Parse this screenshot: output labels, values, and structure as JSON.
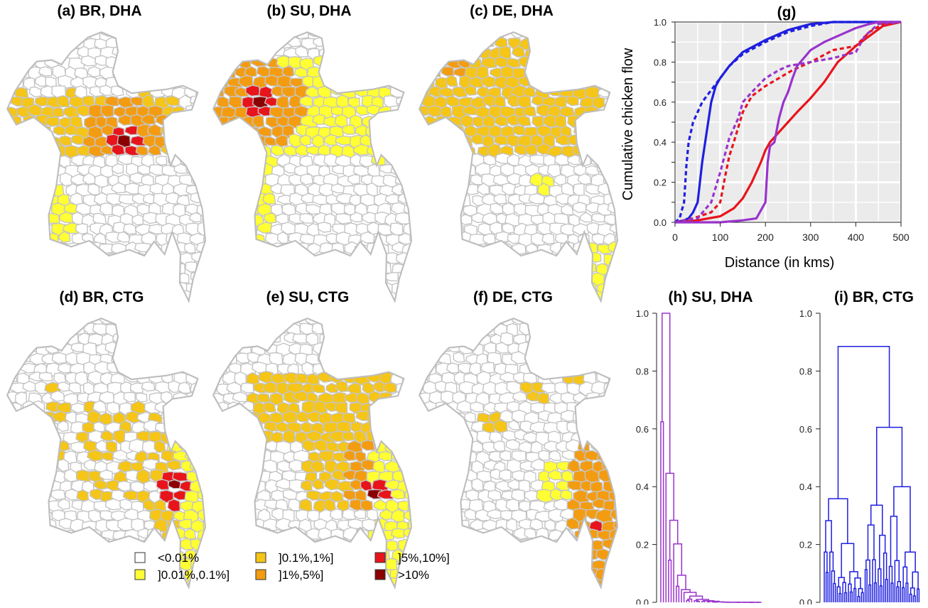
{
  "map_panels": [
    {
      "title": "(a) BR, DHA",
      "route": "DHA"
    },
    {
      "title": "(b) SU, DHA",
      "route": "DHA"
    },
    {
      "title": "(c) DE, DHA",
      "route": "DHA"
    },
    {
      "title": "(d) BR, CTG",
      "route": "CTG"
    },
    {
      "title": "(e) SU, CTG",
      "route": "CTG"
    },
    {
      "title": "(f) DE, CTG",
      "route": "CTG"
    }
  ],
  "legend": [
    {
      "label": "<0.01%",
      "color": "#ffffff"
    },
    {
      "label": "]0.01%,0.1%]",
      "color": "#ffff33"
    },
    {
      "label": "]0.1%,1%]",
      "color": "#f5c518"
    },
    {
      "label": "]1%,5%]",
      "color": "#f39c12"
    },
    {
      "label": "]5%,10%]",
      "color": "#e8141b"
    },
    {
      "label": ">10%",
      "color": "#8b0000"
    }
  ],
  "chart_data": [
    {
      "type": "line",
      "title": "(g)",
      "xlabel": "Distance (in kms)",
      "ylabel": "Cumulative chicken flow",
      "xlim": [
        0,
        500
      ],
      "ylim": [
        0,
        1
      ],
      "xticks": [
        "0",
        "100",
        "200",
        "300",
        "400",
        "500"
      ],
      "yticks": [
        "0.0",
        "0.2",
        "0.4",
        "0.6",
        "0.8",
        "1.0"
      ],
      "grid": true,
      "background": "#ebebeb",
      "series": [
        {
          "color": "#1f1fe0",
          "dash": false,
          "x": [
            0,
            20,
            30,
            40,
            50,
            55,
            60,
            70,
            80,
            90,
            100,
            120,
            150,
            200,
            250,
            300,
            350,
            400,
            500
          ],
          "y": [
            0,
            0.01,
            0.02,
            0.05,
            0.1,
            0.2,
            0.3,
            0.45,
            0.6,
            0.68,
            0.72,
            0.78,
            0.85,
            0.91,
            0.96,
            0.99,
            1.0,
            1.0,
            1.0
          ]
        },
        {
          "color": "#1f1fe0",
          "dash": true,
          "x": [
            0,
            10,
            20,
            25,
            30,
            40,
            50,
            60,
            70,
            80,
            100,
            120,
            150,
            200,
            250,
            300,
            350,
            400,
            500
          ],
          "y": [
            0,
            0.02,
            0.1,
            0.28,
            0.4,
            0.5,
            0.55,
            0.6,
            0.63,
            0.66,
            0.72,
            0.78,
            0.84,
            0.9,
            0.95,
            0.98,
            1.0,
            1.0,
            1.0
          ]
        },
        {
          "color": "#e8141b",
          "dash": false,
          "x": [
            0,
            50,
            100,
            130,
            150,
            170,
            190,
            200,
            210,
            230,
            250,
            270,
            300,
            330,
            360,
            400,
            430,
            460,
            500
          ],
          "y": [
            0,
            0.01,
            0.03,
            0.07,
            0.12,
            0.2,
            0.3,
            0.36,
            0.4,
            0.45,
            0.5,
            0.55,
            0.62,
            0.7,
            0.8,
            0.88,
            0.93,
            0.98,
            1.0
          ]
        },
        {
          "color": "#e8141b",
          "dash": true,
          "x": [
            0,
            20,
            40,
            80,
            100,
            110,
            120,
            130,
            150,
            170,
            200,
            230,
            260,
            300,
            350,
            400,
            430,
            460,
            500
          ],
          "y": [
            0,
            0.01,
            0.02,
            0.05,
            0.1,
            0.22,
            0.33,
            0.4,
            0.55,
            0.63,
            0.68,
            0.72,
            0.76,
            0.8,
            0.86,
            0.88,
            0.95,
            0.99,
            1.0
          ]
        },
        {
          "color": "#9933cc",
          "dash": false,
          "x": [
            0,
            100,
            150,
            180,
            200,
            205,
            210,
            220,
            230,
            240,
            250,
            260,
            270,
            300,
            330,
            370,
            400,
            430,
            450,
            500
          ],
          "y": [
            0,
            0.0,
            0.01,
            0.02,
            0.1,
            0.3,
            0.38,
            0.4,
            0.52,
            0.6,
            0.65,
            0.72,
            0.78,
            0.86,
            0.9,
            0.94,
            0.97,
            0.99,
            1.0,
            1.0
          ]
        },
        {
          "color": "#9933cc",
          "dash": true,
          "x": [
            0,
            20,
            50,
            80,
            100,
            120,
            140,
            150,
            170,
            200,
            230,
            250,
            300,
            350,
            400,
            420,
            450,
            500
          ],
          "y": [
            0,
            0.01,
            0.02,
            0.1,
            0.25,
            0.42,
            0.52,
            0.6,
            0.65,
            0.72,
            0.76,
            0.78,
            0.8,
            0.82,
            0.85,
            0.93,
            0.99,
            1.0
          ]
        }
      ]
    },
    {
      "type": "dendrogram",
      "title": "(h) SU, DHA",
      "color": "#9933cc",
      "ylim": [
        0,
        1
      ],
      "yticks": [
        "0.0",
        "0.2",
        "0.4",
        "0.6",
        "0.8",
        "1.0"
      ]
    },
    {
      "type": "dendrogram",
      "title": "(i) BR, CTG",
      "color": "#1f1fe0",
      "ylim": [
        0,
        1
      ],
      "yticks": [
        "0.0",
        "0.2",
        "0.4",
        "0.6",
        "0.8",
        "1.0"
      ]
    }
  ]
}
